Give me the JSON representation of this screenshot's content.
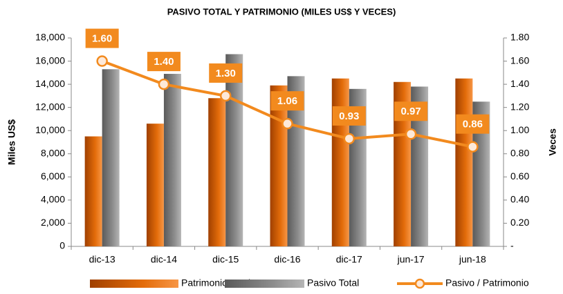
{
  "chart_data": {
    "type": "bar",
    "title": "PASIVO TOTAL Y PATRIMONIO (MILES US$ Y VECES)",
    "y_label": "Miles US$",
    "y2_label": "Veces",
    "categories": [
      "dic-13",
      "dic-14",
      "dic-15",
      "dic-16",
      "dic-17",
      "jun-17",
      "jun-18"
    ],
    "series": [
      {
        "name": "Patrimonio Total",
        "color": "#e36c0a",
        "type": "bar",
        "values": [
          9500,
          10600,
          12800,
          13900,
          14500,
          14200,
          14500
        ]
      },
      {
        "name": "Pasivo Total",
        "color": "#8c8c8c",
        "type": "bar",
        "values": [
          15300,
          14900,
          16600,
          14700,
          13600,
          13800,
          12500
        ]
      },
      {
        "name": "Pasivo / Patrimonio",
        "color": "#f28a1e",
        "type": "line",
        "axis": "y2",
        "values": [
          1.6,
          1.4,
          1.3,
          1.06,
          0.93,
          0.97,
          0.86
        ],
        "value_labels": [
          "1.60",
          "1.40",
          "1.30",
          "1.06",
          "0.93",
          "0.97",
          "0.86"
        ]
      }
    ],
    "ylim": [
      0,
      18000
    ],
    "yticks": [
      0,
      {
        "value": 2000,
        "label": "2,000"
      },
      {
        "value": 4000,
        "label": "4,000"
      },
      {
        "value": 6000,
        "label": "6,000"
      },
      {
        "value": 8000,
        "label": "8,000"
      },
      {
        "value": 10000,
        "label": "10,000"
      },
      {
        "value": 12000,
        "label": "12,000"
      },
      {
        "value": 14000,
        "label": "14,000"
      },
      {
        "value": 16000,
        "label": "16,000"
      },
      {
        "value": 18000,
        "label": "18,000"
      }
    ],
    "y2lim": [
      0,
      1.8
    ],
    "y2ticks": [
      {
        "value": 0,
        "label": "-"
      },
      {
        "value": 0.2,
        "label": "0.20"
      },
      {
        "value": 0.4,
        "label": "0.40"
      },
      {
        "value": 0.6,
        "label": "0.60"
      },
      {
        "value": 0.8,
        "label": "0.80"
      },
      {
        "value": 1,
        "label": "1.00"
      },
      {
        "value": 1.2,
        "label": "1.20"
      },
      {
        "value": 1.4,
        "label": "1.40"
      },
      {
        "value": 1.6,
        "label": "1.60"
      },
      {
        "value": 1.8,
        "label": "1.80"
      }
    ],
    "legend": "bottom"
  }
}
